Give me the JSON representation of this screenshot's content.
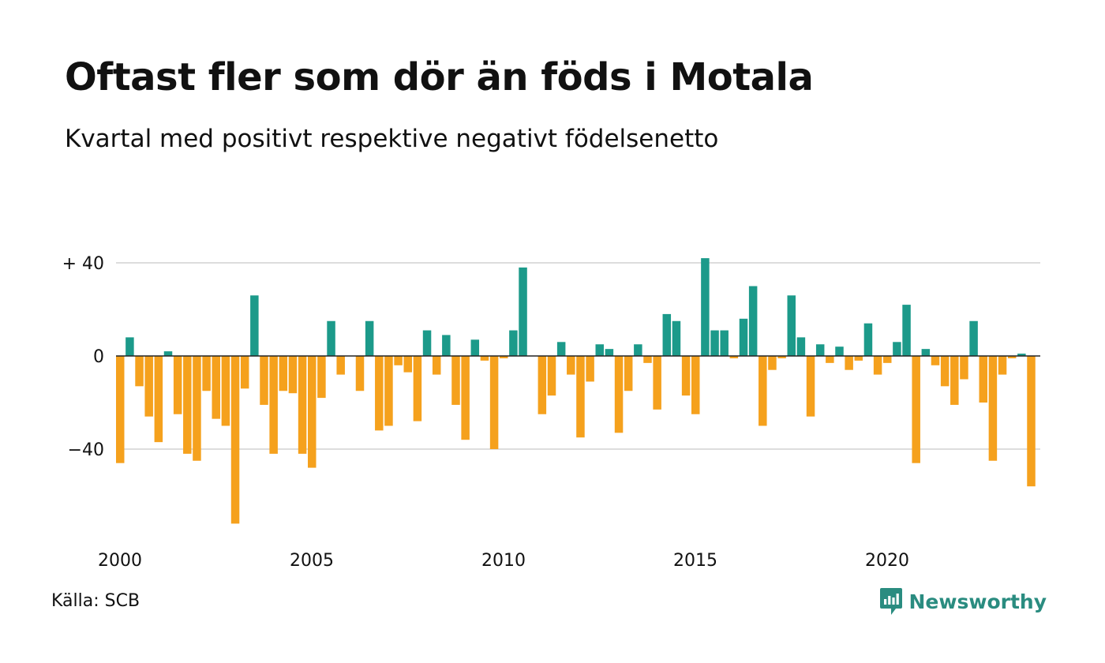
{
  "header": {
    "title": "Oftast fler som dör än föds i Motala",
    "subtitle": "Kvartal med positivt respektive negativt födelsenetto"
  },
  "footer": {
    "source": "Källa: SCB",
    "brand": "Newsworthy"
  },
  "colors": {
    "positive": "#1c9a8a",
    "negative": "#f5a11d",
    "grid": "#dddddd",
    "brand": "#2a8c80"
  },
  "chart_data": {
    "type": "bar",
    "x_start": 2000,
    "periods_per_year": 4,
    "xticks": [
      2000,
      2005,
      2010,
      2015,
      2020
    ],
    "xtick_labels": [
      "2000",
      "2005",
      "2010",
      "2015",
      "2020"
    ],
    "yticks": [
      40,
      0,
      -40
    ],
    "ytick_labels": [
      "+ 40",
      "0",
      "−40"
    ],
    "ylim": [
      -75,
      45
    ],
    "grid": true,
    "series": [
      {
        "values": [
          -46,
          8,
          -13,
          -26,
          -37,
          2,
          -25,
          -42,
          -45,
          -15,
          -27,
          -30,
          -72,
          -14,
          26,
          -21,
          -42,
          -15,
          -16,
          -42,
          -48,
          -18,
          15,
          -8,
          0,
          -15,
          15,
          -32,
          -30,
          -4,
          -7,
          -28,
          11,
          -8,
          9,
          -21,
          -36,
          7,
          -2,
          -40,
          -1,
          11,
          38,
          0,
          -25,
          -17,
          6,
          -8,
          -35,
          -11,
          5,
          3,
          -33,
          -15,
          5,
          -3,
          -23,
          18,
          15,
          -17,
          -25,
          42,
          11,
          11,
          -1,
          16,
          30,
          -30,
          -6,
          -1,
          26,
          8,
          -26,
          5,
          -3,
          4,
          -6,
          -2,
          14,
          -8,
          -3,
          6,
          22,
          -46,
          3,
          -4,
          -13,
          -21,
          -10,
          15,
          -20,
          -45,
          -8,
          -1,
          1,
          -56
        ]
      }
    ]
  }
}
